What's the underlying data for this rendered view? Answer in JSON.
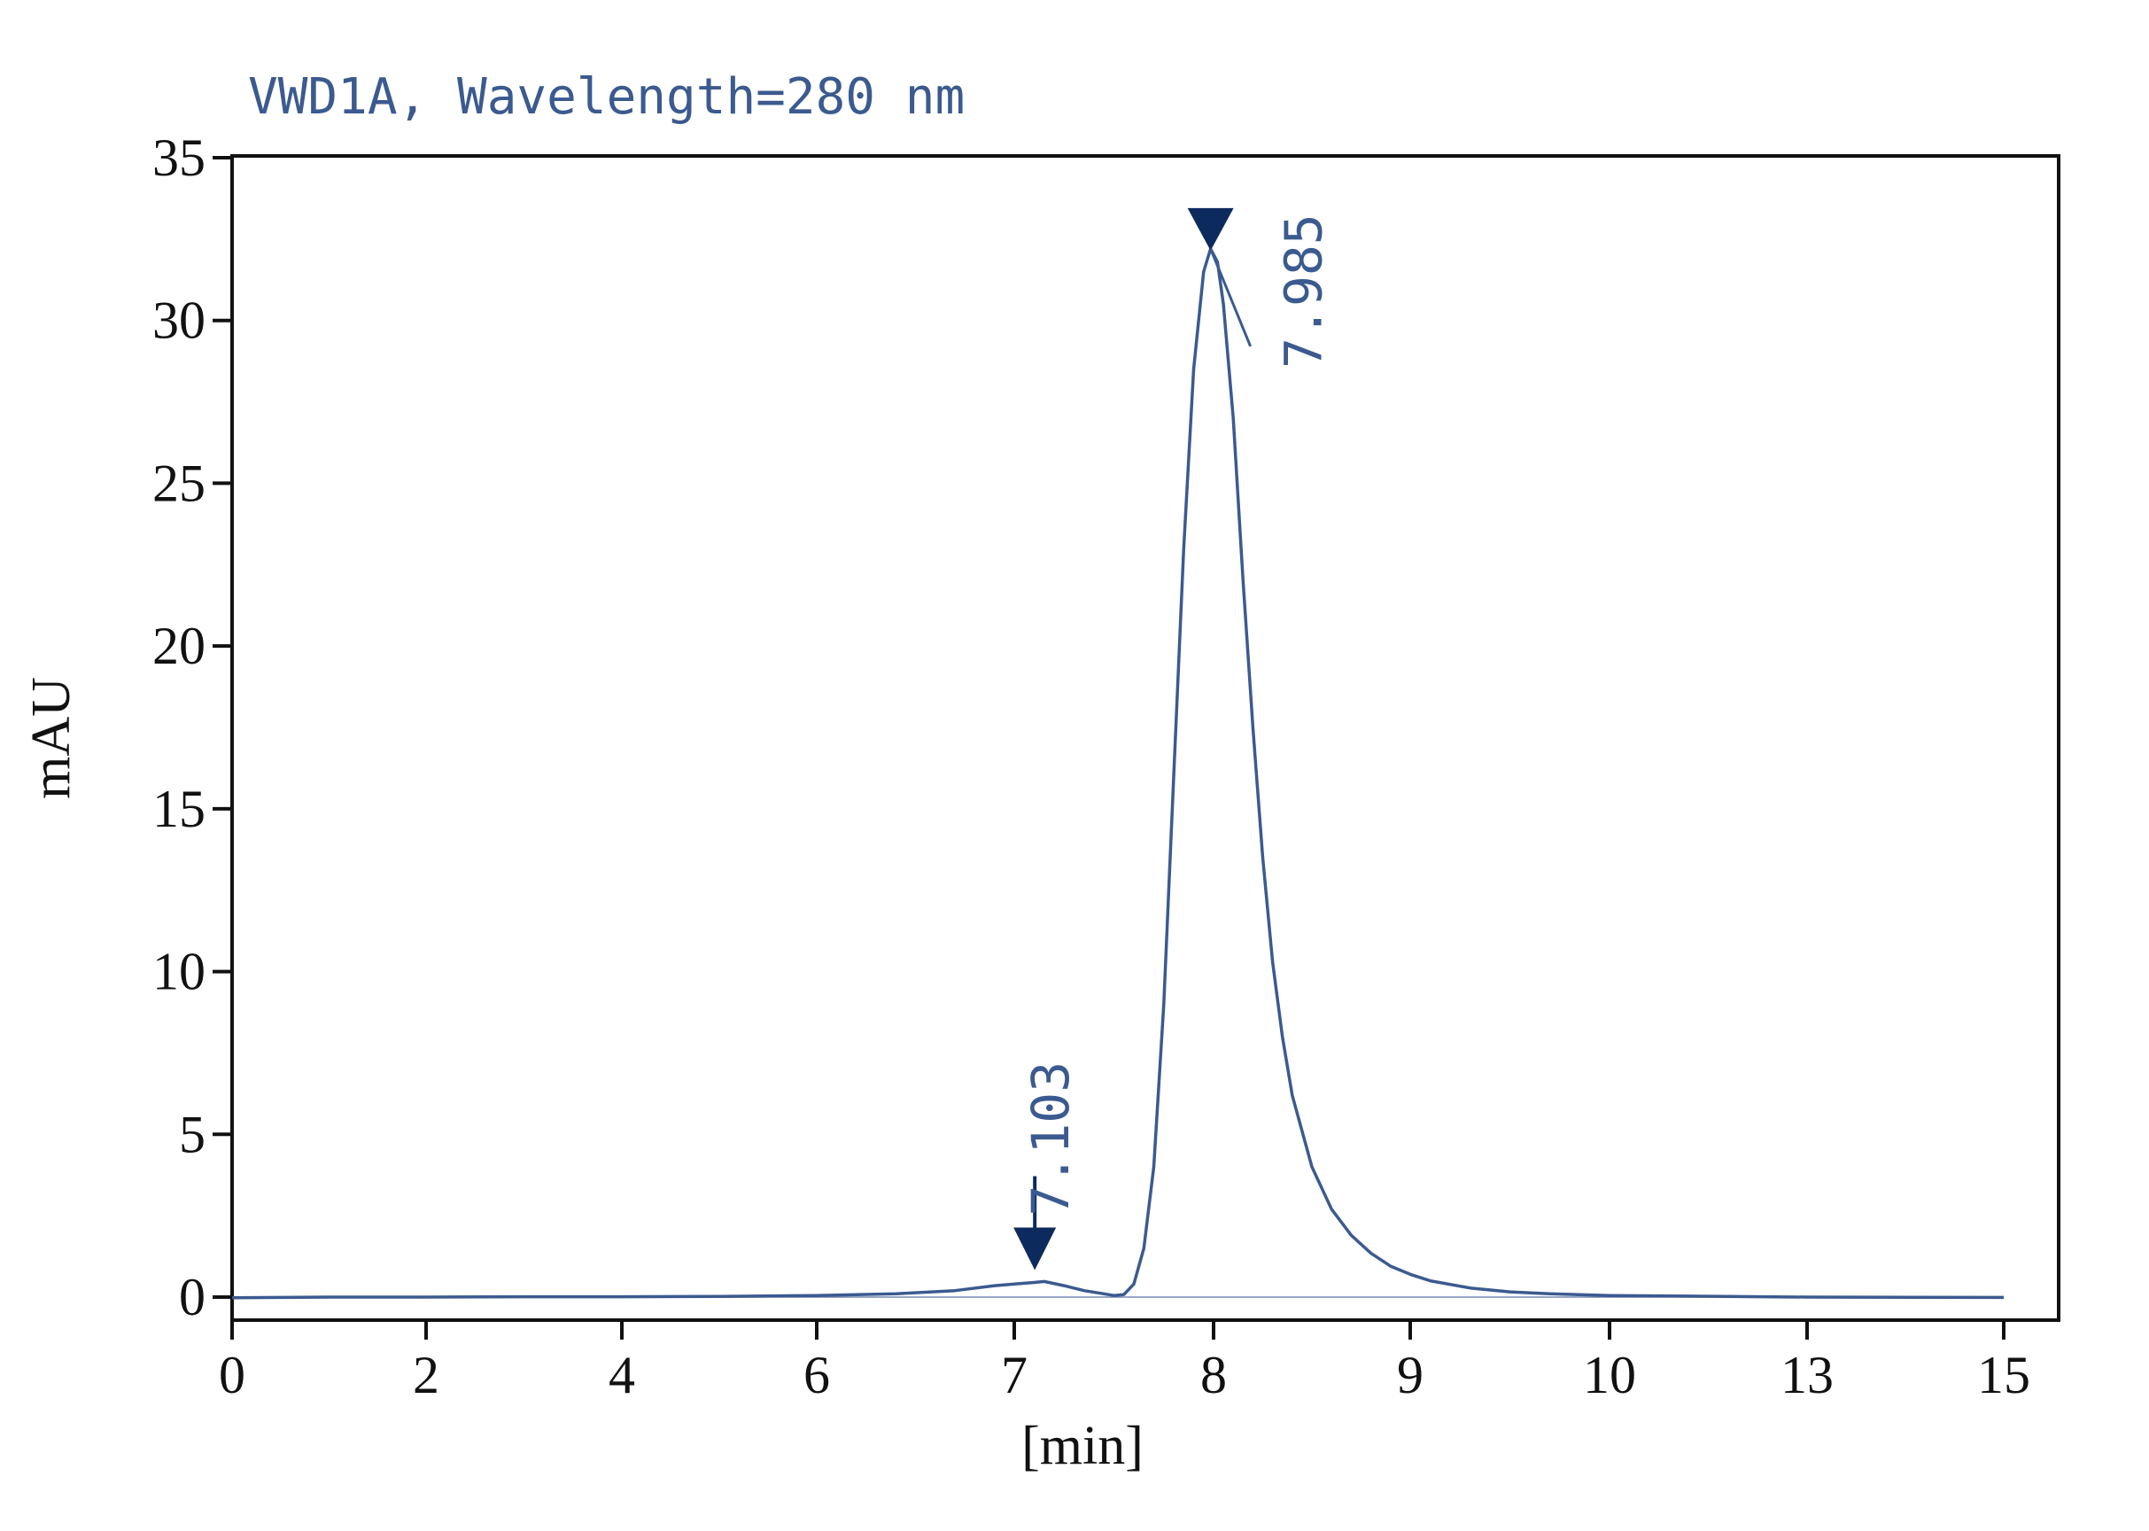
{
  "chart_data": {
    "type": "line",
    "title": "VWD1A, Wavelength=280 nm",
    "xlabel": "[min]",
    "ylabel": "mAU",
    "x_tick_labels": [
      "0",
      "2",
      "4",
      "6",
      "7",
      "8",
      "9",
      "10",
      "13",
      "15"
    ],
    "y_ticks": [
      0,
      5,
      10,
      15,
      20,
      25,
      30,
      35
    ],
    "ylim": [
      -0.7,
      35
    ],
    "grid": false,
    "colors": {
      "trace": "#3b5a8f",
      "title": "#3b5a8f",
      "marker": "#0d2a5e",
      "axis": "#111111"
    },
    "series": [
      {
        "x": [
          0,
          1,
          2,
          3,
          4,
          5,
          6,
          6.4,
          6.7,
          6.9,
          7.0,
          7.1,
          7.15,
          7.25,
          7.35,
          7.45,
          7.5,
          7.55,
          7.6,
          7.65,
          7.7,
          7.75,
          7.8,
          7.85,
          7.9,
          7.95,
          7.985,
          8.02,
          8.05,
          8.1,
          8.15,
          8.2,
          8.25,
          8.3,
          8.35,
          8.4,
          8.5,
          8.6,
          8.7,
          8.8,
          8.9,
          9.0,
          9.1,
          9.3,
          9.5,
          9.7,
          10,
          13,
          15
        ],
        "y": [
          -0.02,
          0,
          0,
          0.01,
          0.01,
          0.02,
          0.05,
          0.1,
          0.2,
          0.35,
          0.4,
          0.45,
          0.48,
          0.35,
          0.2,
          0.1,
          0.05,
          0.08,
          0.4,
          1.5,
          4.0,
          9.0,
          16.0,
          23.0,
          28.5,
          31.5,
          32.2,
          31.8,
          30.5,
          27.0,
          22.0,
          17.5,
          13.5,
          10.3,
          8.0,
          6.2,
          4.0,
          2.7,
          1.9,
          1.35,
          0.95,
          0.7,
          0.5,
          0.28,
          0.16,
          0.1,
          0.05,
          0.0,
          -0.01
        ]
      }
    ],
    "peaks": [
      {
        "label": "7.103",
        "x": 7.103,
        "y": 0.45
      },
      {
        "label": "7.985",
        "x": 7.985,
        "y": 32.2
      }
    ]
  }
}
